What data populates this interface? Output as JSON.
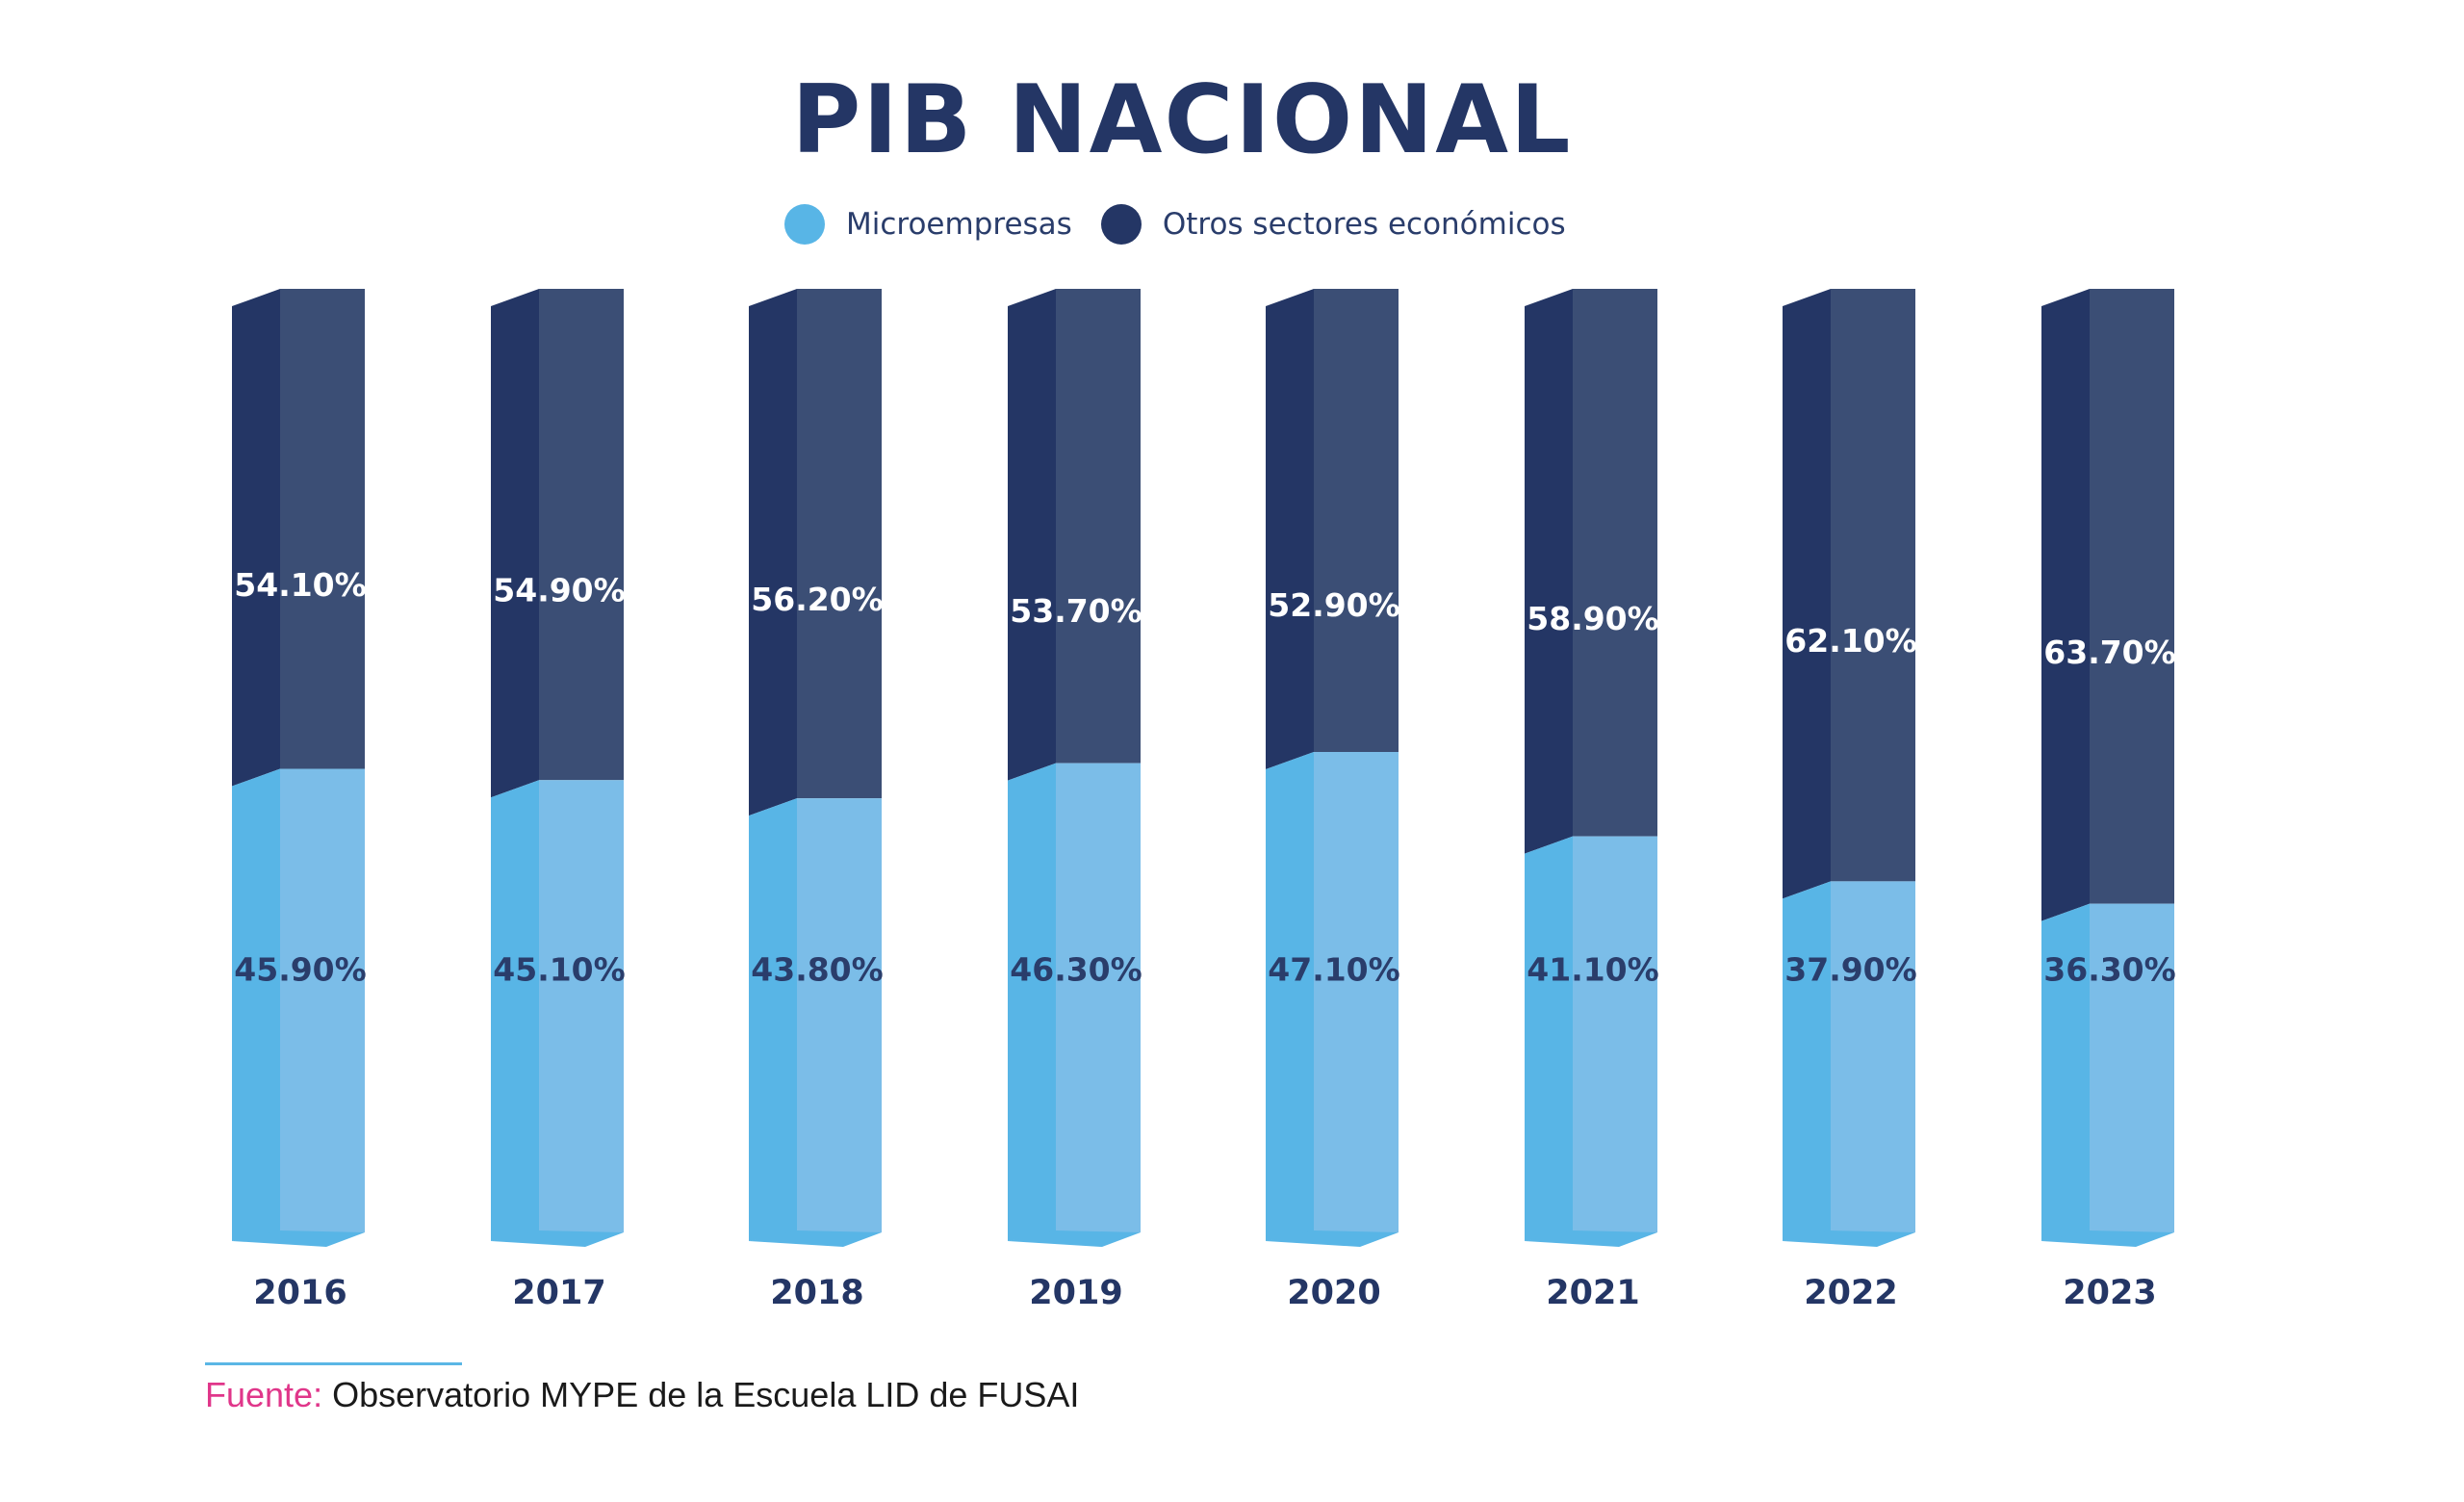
{
  "colors": {
    "title": "#243665",
    "micro_front": "#58b5e6",
    "micro_side": "#7bbde8",
    "otros_front": "#243665",
    "otros_side": "#3b4e75",
    "label_dark": "#2a3d6b",
    "label_light": "#ffffff",
    "source_label": "#e0368a",
    "rule": "#5ab6e5"
  },
  "source": {
    "label": "Fuente:",
    "text": " Observatorio MYPE de la Escuela LID de FUSAI"
  },
  "chart_data": {
    "type": "bar",
    "stacked": true,
    "title": "PIB NACIONAL",
    "xlabel": "",
    "ylabel": "",
    "ylim": [
      0,
      100
    ],
    "grid": false,
    "legend_position": "top-center",
    "categories": [
      "2016",
      "2017",
      "2018",
      "2019",
      "2020",
      "2021",
      "2022",
      "2023"
    ],
    "series": [
      {
        "name": "Microempresas",
        "color": "#58b5e6",
        "values": [
          45.9,
          45.1,
          43.8,
          46.3,
          47.1,
          41.1,
          37.9,
          36.3
        ],
        "labels": [
          "45.90%",
          "45.10%",
          "43.80%",
          "46.30%",
          "47.10%",
          "41.10%",
          "37.90%",
          "36.30%"
        ]
      },
      {
        "name": "Otros sectores económicos",
        "color": "#243665",
        "values": [
          54.1,
          54.9,
          56.2,
          53.7,
          52.9,
          58.9,
          62.1,
          63.7
        ],
        "labels": [
          "54.10%",
          "54.90%",
          "56.20%",
          "53.70%",
          "52.90%",
          "58.90%",
          "62.10%",
          "63.70%"
        ]
      }
    ]
  }
}
